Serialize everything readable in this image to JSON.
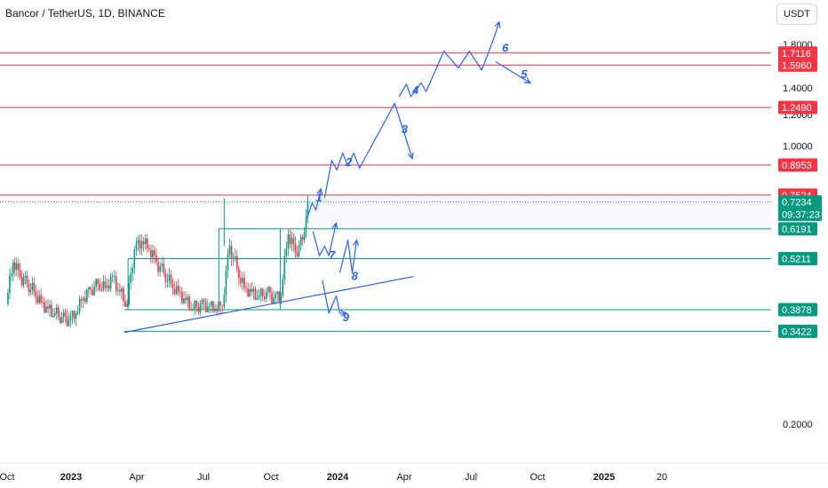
{
  "header": {
    "symbol_title": "Bancor / TetherUS, 1D, BINANCE",
    "currency_button": "USDT"
  },
  "colors": {
    "resistance": "#f23645",
    "support": "#089981",
    "projection": "#2962ff",
    "candle_up": "#089981",
    "candle_down": "#f23645",
    "axis_text": "#131722"
  },
  "chart_data": {
    "type": "candlestick",
    "symbol": "Bancor / TetherUS",
    "interval": "1D",
    "exchange": "BINANCE",
    "x_range": [
      "2022-10-01",
      "2025-12-31"
    ],
    "y_scale": "log",
    "y_ticks": [
      "1.8000",
      "1.4000",
      "1.2000",
      "1.0000",
      "0.2000"
    ],
    "x_ticks": [
      "Oct",
      "2023",
      "Apr",
      "Jul",
      "Oct",
      "2024",
      "Apr",
      "Jul",
      "Oct",
      "2025",
      "20"
    ],
    "x_tick_dates": [
      "2022-10-01",
      "2023-01-01",
      "2023-04-01",
      "2023-07-01",
      "2023-10-01",
      "2024-01-01",
      "2024-04-01",
      "2024-07-01",
      "2024-10-01",
      "2025-01-01",
      "2025-04-01"
    ],
    "current_price": "0.7234",
    "countdown": "09:37:23",
    "resistance_levels": [
      "0.7524",
      "0.8953",
      "1.2490",
      "1.5960",
      "1.7116"
    ],
    "support_levels": [
      "0.6191",
      "0.5211",
      "0.3878",
      "0.3422"
    ],
    "bullish_projection_labels": [
      "1",
      "2",
      "3",
      "4",
      "5",
      "6"
    ],
    "bearish_projection_labels": [
      "7",
      "8",
      "9"
    ],
    "bullish_path": [
      [
        "2023-11-20",
        0.66
      ],
      [
        "2023-11-27",
        0.72
      ],
      [
        "2023-12-02",
        0.69
      ],
      [
        "2023-12-09",
        0.78
      ],
      [
        "2023-12-14",
        0.74
      ],
      [
        "2023-12-24",
        0.92
      ],
      [
        "2023-12-31",
        0.87
      ],
      [
        "2024-01-08",
        0.96
      ],
      [
        "2024-01-15",
        0.89
      ],
      [
        "2024-01-23",
        0.96
      ],
      [
        "2024-01-31",
        0.88
      ],
      [
        "2024-03-19",
        1.28
      ],
      [
        "2024-04-12",
        0.93
      ],
      [
        "2024-03-25",
        1.33
      ],
      [
        "2024-04-04",
        1.43
      ],
      [
        "2024-04-10",
        1.33
      ],
      [
        "2024-04-24",
        1.44
      ],
      [
        "2024-05-01",
        1.37
      ],
      [
        "2024-05-25",
        1.73
      ],
      [
        "2024-06-14",
        1.57
      ],
      [
        "2024-06-29",
        1.73
      ],
      [
        "2024-07-16",
        1.55
      ],
      [
        "2024-08-02",
        1.87
      ],
      [
        "2024-08-09",
        2.05
      ],
      [
        "2024-08-04",
        1.63
      ],
      [
        "2024-09-21",
        1.44
      ]
    ],
    "bearish_path": [
      [
        "2023-11-28",
        0.61
      ],
      [
        "2023-12-07",
        0.53
      ],
      [
        "2023-12-14",
        0.56
      ],
      [
        "2023-12-20",
        0.53
      ],
      [
        "2023-12-30",
        0.64
      ],
      [
        "2024-01-04",
        0.48
      ],
      [
        "2024-01-15",
        0.58
      ],
      [
        "2024-01-21",
        0.48
      ],
      [
        "2024-01-27",
        0.58
      ],
      [
        "2023-12-11",
        0.46
      ],
      [
        "2023-12-20",
        0.38
      ],
      [
        "2023-12-30",
        0.42
      ],
      [
        "2024-01-04",
        0.38
      ],
      [
        "2024-01-13",
        0.38
      ]
    ],
    "trendline": [
      [
        "2023-03-15",
        0.34
      ],
      [
        "2024-04-14",
        0.47
      ]
    ],
    "candles": [
      [
        "2022-10-01",
        0.4,
        0.52,
        0.395,
        0.51
      ],
      [
        "2022-10-11",
        0.51,
        0.525,
        0.46,
        0.47
      ],
      [
        "2022-10-21",
        0.47,
        0.485,
        0.44,
        0.45
      ],
      [
        "2022-10-31",
        0.45,
        0.47,
        0.42,
        0.43
      ],
      [
        "2022-11-10",
        0.43,
        0.45,
        0.4,
        0.405
      ],
      [
        "2022-11-20",
        0.405,
        0.42,
        0.38,
        0.39
      ],
      [
        "2022-11-30",
        0.39,
        0.41,
        0.37,
        0.38
      ],
      [
        "2022-12-10",
        0.38,
        0.4,
        0.365,
        0.37
      ],
      [
        "2022-12-20",
        0.37,
        0.39,
        0.355,
        0.365
      ],
      [
        "2022-12-30",
        0.365,
        0.385,
        0.35,
        0.38
      ],
      [
        "2023-01-09",
        0.38,
        0.42,
        0.375,
        0.415
      ],
      [
        "2023-01-19",
        0.415,
        0.44,
        0.4,
        0.435
      ],
      [
        "2023-01-29",
        0.435,
        0.46,
        0.42,
        0.45
      ],
      [
        "2023-02-08",
        0.45,
        0.475,
        0.43,
        0.44
      ],
      [
        "2023-02-18",
        0.44,
        0.48,
        0.43,
        0.47
      ],
      [
        "2023-02-28",
        0.47,
        0.49,
        0.42,
        0.43
      ],
      [
        "2023-03-10",
        0.43,
        0.445,
        0.395,
        0.4
      ],
      [
        "2023-03-20",
        0.4,
        0.56,
        0.395,
        0.55
      ],
      [
        "2023-03-30",
        0.55,
        0.6,
        0.53,
        0.575
      ],
      [
        "2023-04-09",
        0.575,
        0.6,
        0.54,
        0.55
      ],
      [
        "2023-04-19",
        0.55,
        0.565,
        0.5,
        0.51
      ],
      [
        "2023-04-29",
        0.51,
        0.525,
        0.47,
        0.48
      ],
      [
        "2023-05-09",
        0.48,
        0.495,
        0.44,
        0.45
      ],
      [
        "2023-05-19",
        0.45,
        0.465,
        0.42,
        0.43
      ],
      [
        "2023-05-29",
        0.43,
        0.445,
        0.4,
        0.41
      ],
      [
        "2023-06-08",
        0.41,
        0.425,
        0.385,
        0.39
      ],
      [
        "2023-06-18",
        0.39,
        0.41,
        0.375,
        0.4
      ],
      [
        "2023-06-28",
        0.4,
        0.415,
        0.385,
        0.395
      ],
      [
        "2023-07-08",
        0.395,
        0.405,
        0.38,
        0.39
      ],
      [
        "2023-07-18",
        0.39,
        0.4,
        0.375,
        0.395
      ],
      [
        "2023-07-28",
        0.395,
        0.74,
        0.39,
        0.56
      ],
      [
        "2023-08-07",
        0.56,
        0.58,
        0.48,
        0.49
      ],
      [
        "2023-08-17",
        0.49,
        0.5,
        0.43,
        0.44
      ],
      [
        "2023-08-27",
        0.44,
        0.455,
        0.42,
        0.43
      ],
      [
        "2023-09-06",
        0.43,
        0.445,
        0.41,
        0.42
      ],
      [
        "2023-09-16",
        0.42,
        0.44,
        0.405,
        0.43
      ],
      [
        "2023-09-26",
        0.43,
        0.445,
        0.41,
        0.415
      ],
      [
        "2023-10-06",
        0.415,
        0.43,
        0.4,
        0.42
      ],
      [
        "2023-10-16",
        0.42,
        0.64,
        0.415,
        0.6
      ],
      [
        "2023-10-26",
        0.6,
        0.62,
        0.52,
        0.54
      ],
      [
        "2023-11-05",
        0.54,
        0.6,
        0.52,
        0.58
      ],
      [
        "2023-11-15",
        0.58,
        0.76,
        0.57,
        0.723
      ]
    ]
  }
}
